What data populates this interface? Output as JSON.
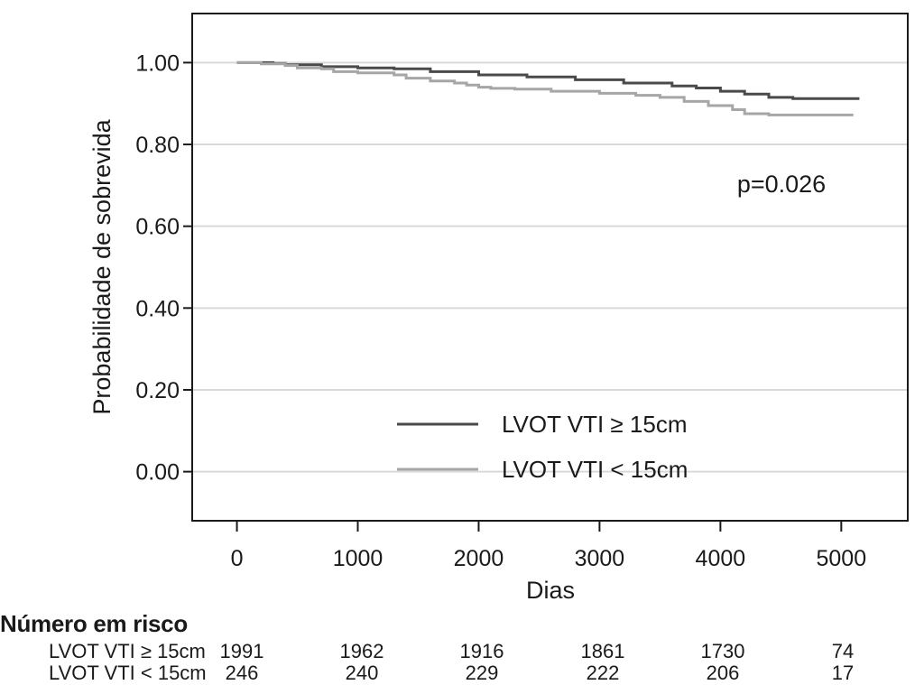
{
  "chart_data": {
    "type": "line",
    "title": "",
    "xlabel": "Dias",
    "ylabel": "Probabilidade de sobrevida",
    "xlim": [
      -370,
      5550
    ],
    "ylim": [
      -0.12,
      1.12
    ],
    "xticks": [
      0,
      1000,
      2000,
      3000,
      4000,
      5000
    ],
    "xtick_labels": [
      "0",
      "1000",
      "2000",
      "3000",
      "4000",
      "5000"
    ],
    "yticks": [
      0.0,
      0.2,
      0.4,
      0.6,
      0.8,
      1.0
    ],
    "ytick_labels": [
      "0.00",
      "0.20",
      "0.40",
      "0.60",
      "0.80",
      "1.00"
    ],
    "grid": "horizontal",
    "legend_position": "bottom-right",
    "annotation": "p=0.026",
    "series": [
      {
        "name": "LVOT VTI ≥ 15cm",
        "color": "#4a4a4a",
        "x": [
          0,
          300,
          400,
          700,
          1000,
          1300,
          1600,
          2000,
          2400,
          2800,
          3200,
          3600,
          3800,
          4000,
          4200,
          4400,
          4600,
          5000,
          5150
        ],
        "y": [
          1.0,
          0.998,
          0.995,
          0.99,
          0.987,
          0.985,
          0.978,
          0.97,
          0.965,
          0.958,
          0.95,
          0.943,
          0.938,
          0.93,
          0.923,
          0.915,
          0.912,
          0.912,
          0.912
        ]
      },
      {
        "name": "LVOT VTI < 15cm",
        "color": "#a6a6a6",
        "x": [
          0,
          200,
          400,
          500,
          700,
          800,
          1000,
          1200,
          1300,
          1400,
          1600,
          1800,
          1900,
          2000,
          2100,
          2300,
          2600,
          3000,
          3300,
          3500,
          3700,
          3900,
          4100,
          4200,
          4400,
          5100
        ],
        "y": [
          1.0,
          0.997,
          0.993,
          0.987,
          0.985,
          0.978,
          0.975,
          0.975,
          0.97,
          0.962,
          0.955,
          0.95,
          0.945,
          0.94,
          0.937,
          0.935,
          0.93,
          0.925,
          0.92,
          0.915,
          0.905,
          0.895,
          0.885,
          0.875,
          0.872,
          0.872
        ]
      }
    ]
  },
  "risk_table": {
    "title": "Número em risco",
    "rows": [
      {
        "label": "LVOT VTI ≥ 15cm",
        "values": [
          "1991",
          "1962",
          "1916",
          "1861",
          "1730",
          "74"
        ]
      },
      {
        "label": "LVOT VTI < 15cm",
        "values": [
          "246",
          "240",
          "229",
          "222",
          "206",
          "17"
        ]
      }
    ]
  }
}
